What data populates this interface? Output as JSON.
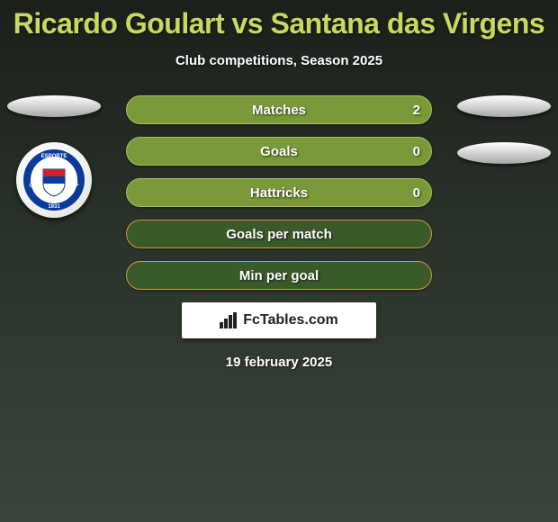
{
  "title": "Ricardo Goulart vs Santana das Virgens",
  "subtitle": "Club competitions, Season 2025",
  "footer_date": "19 february 2025",
  "attribution": "FcTables.com",
  "colors": {
    "title": "#c8d860",
    "row_value_bg": "#7a9a3a",
    "row_value_border": "#a8c060",
    "row_empty_bg": "#3a5a2a",
    "row_empty_border": "#d89840",
    "text": "#ffffff"
  },
  "rows": [
    {
      "label": "Matches",
      "value_right": "2",
      "style": "value"
    },
    {
      "label": "Goals",
      "value_right": "0",
      "style": "value"
    },
    {
      "label": "Hattricks",
      "value_right": "0",
      "style": "value"
    },
    {
      "label": "Goals per match",
      "value_right": "",
      "style": "empty"
    },
    {
      "label": "Min per goal",
      "value_right": "",
      "style": "empty"
    }
  ],
  "badge": {
    "text_top": "ESPORTE",
    "text_left": "CLUBE",
    "text_right": "BAHIA",
    "year": "1931",
    "colors": {
      "blue": "#0a3a9a",
      "red": "#d02030",
      "white": "#ffffff"
    }
  }
}
